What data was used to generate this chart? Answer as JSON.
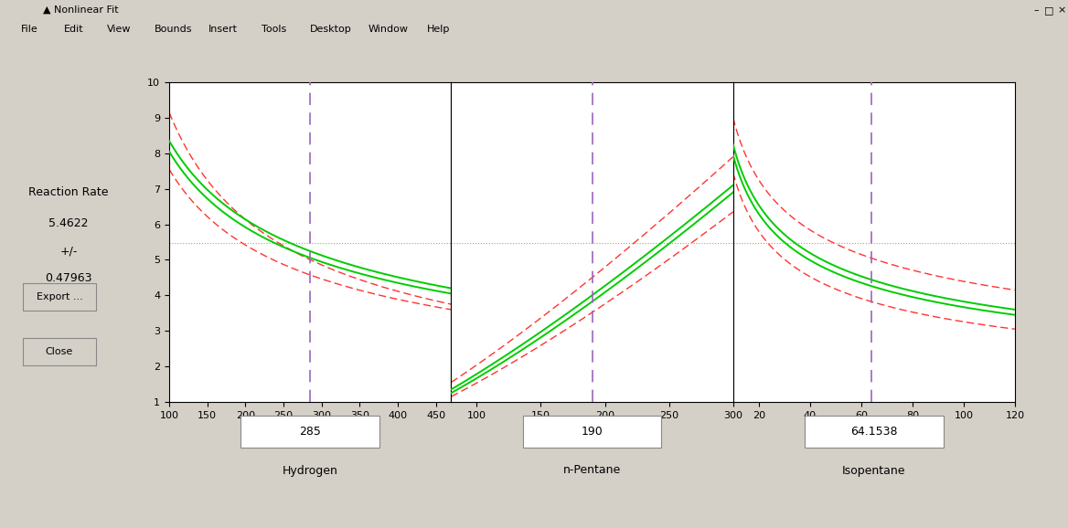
{
  "bg_color": "#d4d0c8",
  "axes_bg": "#ffffff",
  "ylabel_text": "Reaction Rate",
  "y_value": "5.4622",
  "pm_label": "+/-",
  "uncertainty": "0.47963",
  "ylim": [
    1,
    10
  ],
  "yticks": [
    1,
    2,
    3,
    4,
    5,
    6,
    7,
    8,
    9,
    10
  ],
  "hline_y": 5.4622,
  "hline_color": "#aaaa44",
  "green_color": "#00cc00",
  "red_color": "#ff3333",
  "vline_color": "#9966bb",
  "green_lw": 1.4,
  "red_lw": 1.0,
  "ax1": {
    "xlim": [
      100,
      470
    ],
    "xticks": [
      100,
      150,
      200,
      250,
      300,
      350,
      400,
      450
    ],
    "vline_x": 285,
    "label": "Hydrogen",
    "box_value": "285",
    "y_g1_start": 8.35,
    "y_g1_end": 4.2,
    "y_g2_start": 8.05,
    "y_g2_end": 4.05,
    "y_upper_start": 9.15,
    "y_upper_end": 3.75,
    "y_lower_start": 7.55,
    "y_lower_end": 3.6
  },
  "ax2": {
    "xlim": [
      80,
      300
    ],
    "xticks": [
      100,
      150,
      200,
      250,
      300
    ],
    "vline_x": 190,
    "label": "n-Pentane",
    "box_value": "190",
    "y_g1_start": 1.35,
    "y_g1_end": 7.1,
    "y_g2_start": 1.25,
    "y_g2_end": 6.9,
    "y_upper_start": 1.55,
    "y_upper_end": 7.9,
    "y_lower_start": 1.15,
    "y_lower_end": 6.35
  },
  "ax3": {
    "xlim": [
      10,
      120
    ],
    "xticks": [
      20,
      40,
      60,
      80,
      100,
      120
    ],
    "vline_x": 64.1538,
    "label": "Isopentane",
    "box_value": "64.1538",
    "peak_x": 10,
    "y_g1_peak": 8.25,
    "y_g1_end": 3.6,
    "y_g2_peak": 7.95,
    "y_g2_end": 3.45,
    "y_upper_peak": 9.0,
    "y_upper_end": 4.15,
    "y_lower_peak": 7.45,
    "y_lower_end": 3.05
  }
}
